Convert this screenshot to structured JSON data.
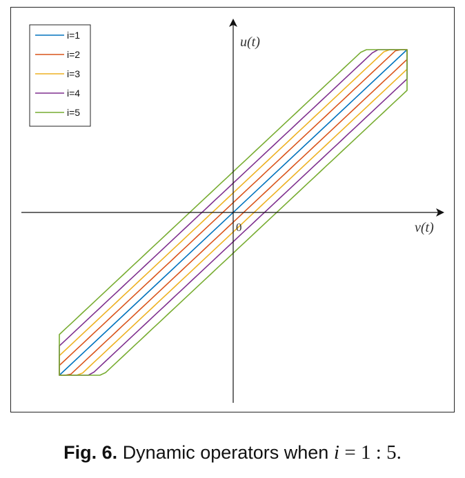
{
  "caption": {
    "label": "Fig. 6.",
    "text": "Dynamic operators when",
    "var": "i",
    "expr": "= 1 : 5."
  },
  "chart_data": {
    "type": "line",
    "title": "",
    "xlabel": "v(t)",
    "ylabel": "u(t)",
    "origin_label": "0",
    "xlim": [
      -1,
      1
    ],
    "ylim": [
      -1,
      1
    ],
    "grid": false,
    "legend": {
      "placement": "top-left",
      "entries": [
        "i=1",
        "i=2",
        "i=3",
        "i=4",
        "i=5"
      ]
    },
    "series": [
      {
        "name": "i=1",
        "color": "#0072BD",
        "offset": 0
      },
      {
        "name": "i=2",
        "color": "#D95319",
        "offset": 0.06
      },
      {
        "name": "i=3",
        "color": "#EDB120",
        "offset": 0.12
      },
      {
        "name": "i=4",
        "color": "#7E2F8E",
        "offset": 0.18
      },
      {
        "name": "i=5",
        "color": "#77AC30",
        "offset": 0.25
      }
    ]
  }
}
